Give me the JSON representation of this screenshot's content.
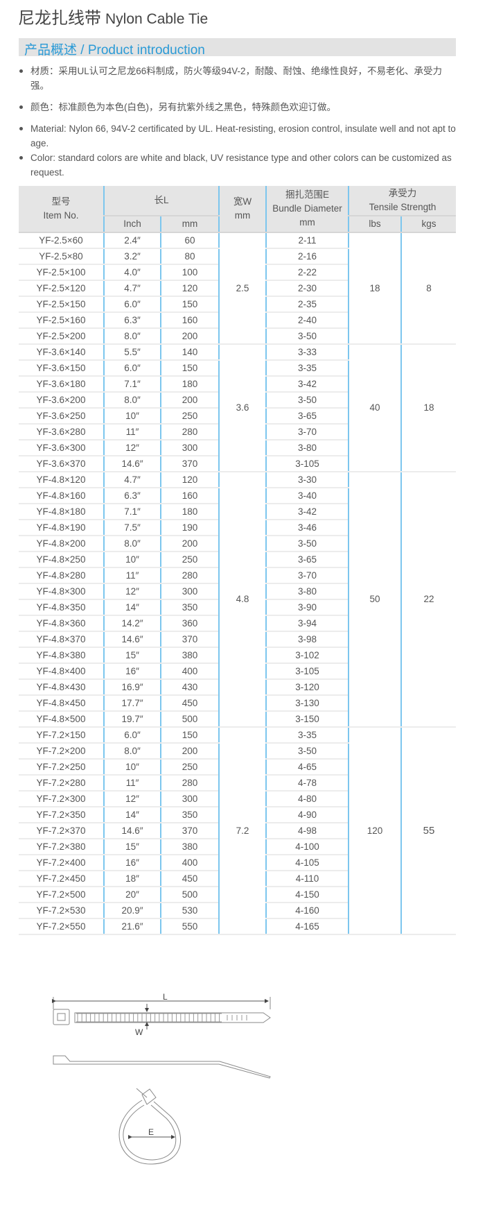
{
  "title": {
    "cn": "尼龙扎线带",
    "en": "Nylon Cable Tie"
  },
  "intro_header": "产品概述  / Product introduction",
  "bullets": [
    "材质：采用UL认可之尼龙66料制成，防火等级94V-2，耐酸、耐蚀、绝缘性良好，不易老化、承受力强。",
    "颜色：标准颜色为本色(白色)，另有抗紫外线之黑色，特殊颜色欢迎订做。",
    "Material: Nylon 66, 94V-2 certificated by UL. Heat-resisting, erosion control, insulate well and not apt to age.",
    "Color: standard colors are white and black, UV resistance type and other colors can be customized as request."
  ],
  "table": {
    "headers": {
      "item_cn": "型号",
      "item_en": "Item  No.",
      "length": "长L",
      "inch": "Inch",
      "mm": "mm",
      "width_cn": "宽W",
      "width_unit": "mm",
      "bundle_cn": "捆扎范围E",
      "bundle_en": "Bundle Diameter",
      "bundle_unit": "mm",
      "tensile_cn": "承受力",
      "tensile_en": "Tensile  Strength",
      "lbs": "lbs",
      "kgs": "kgs"
    },
    "groups": [
      {
        "width": "2.5",
        "lbs": "18",
        "kgs": "8",
        "rows": [
          [
            "YF-2.5×60",
            "2.4″",
            "60",
            "2-11"
          ],
          [
            "YF-2.5×80",
            "3.2″",
            "80",
            "2-16"
          ],
          [
            "YF-2.5×100",
            "4.0″",
            "100",
            "2-22"
          ],
          [
            "YF-2.5×120",
            "4.7″",
            "120",
            "2-30"
          ],
          [
            "YF-2.5×150",
            "6.0″",
            "150",
            "2-35"
          ],
          [
            "YF-2.5×160",
            "6.3″",
            "160",
            "2-40"
          ],
          [
            "YF-2.5×200",
            "8.0″",
            "200",
            "3-50"
          ]
        ]
      },
      {
        "width": "3.6",
        "lbs": "40",
        "kgs": "18",
        "rows": [
          [
            "YF-3.6×140",
            "5.5″",
            "140",
            "3-33"
          ],
          [
            "YF-3.6×150",
            "6.0″",
            "150",
            "3-35"
          ],
          [
            "YF-3.6×180",
            "7.1″",
            "180",
            "3-42"
          ],
          [
            "YF-3.6×200",
            "8.0″",
            "200",
            "3-50"
          ],
          [
            "YF-3.6×250",
            "10″",
            "250",
            "3-65"
          ],
          [
            "YF-3.6×280",
            "11″",
            "280",
            "3-70"
          ],
          [
            "YF-3.6×300",
            "12″",
            "300",
            "3-80"
          ],
          [
            "YF-3.6×370",
            "14.6″",
            "370",
            "3-105"
          ]
        ]
      },
      {
        "width": "4.8",
        "lbs": "50",
        "kgs": "22",
        "rows": [
          [
            "YF-4.8×120",
            "4.7″",
            "120",
            "3-30"
          ],
          [
            "YF-4.8×160",
            "6.3″",
            "160",
            "3-40"
          ],
          [
            "YF-4.8×180",
            "7.1″",
            "180",
            "3-42"
          ],
          [
            "YF-4.8×190",
            "7.5″",
            "190",
            "3-46"
          ],
          [
            "YF-4.8×200",
            "8.0″",
            "200",
            "3-50"
          ],
          [
            "YF-4.8×250",
            "10″",
            "250",
            "3-65"
          ],
          [
            "YF-4.8×280",
            "11″",
            "280",
            "3-70"
          ],
          [
            "YF-4.8×300",
            "12″",
            "300",
            "3-80"
          ],
          [
            "YF-4.8×350",
            "14″",
            "350",
            "3-90"
          ],
          [
            "YF-4.8×360",
            "14.2″",
            "360",
            "3-94"
          ],
          [
            "YF-4.8×370",
            "14.6″",
            "370",
            "3-98"
          ],
          [
            "YF-4.8×380",
            "15″",
            "380",
            "3-102"
          ],
          [
            "YF-4.8×400",
            "16″",
            "400",
            "3-105"
          ],
          [
            "YF-4.8×430",
            "16.9″",
            "430",
            "3-120"
          ],
          [
            "YF-4.8×450",
            "17.7″",
            "450",
            "3-130"
          ],
          [
            "YF-4.8×500",
            "19.7″",
            "500",
            "3-150"
          ]
        ]
      },
      {
        "width": "7.2",
        "lbs": "120",
        "kgs": "55",
        "rows": [
          [
            "YF-7.2×150",
            "6.0″",
            "150",
            "3-35"
          ],
          [
            "YF-7.2×200",
            "8.0″",
            "200",
            "3-50"
          ],
          [
            "YF-7.2×250",
            "10″",
            "250",
            "4-65"
          ],
          [
            "YF-7.2×280",
            "11″",
            "280",
            "4-78"
          ],
          [
            "YF-7.2×300",
            "12″",
            "300",
            "4-80"
          ],
          [
            "YF-7.2×350",
            "14″",
            "350",
            "4-90"
          ],
          [
            "YF-7.2×370",
            "14.6″",
            "370",
            "4-98"
          ],
          [
            "YF-7.2×380",
            "15″",
            "380",
            "4-100"
          ],
          [
            "YF-7.2×400",
            "16″",
            "400",
            "4-105"
          ],
          [
            "YF-7.2×450",
            "18″",
            "450",
            "4-110"
          ],
          [
            "YF-7.2×500",
            "20″",
            "500",
            "4-150"
          ],
          [
            "YF-7.2×530",
            "20.9″",
            "530",
            "4-160"
          ],
          [
            "YF-7.2×550",
            "21.6″",
            "550",
            "4-165"
          ]
        ]
      }
    ]
  },
  "diagram_labels": {
    "length": "L",
    "width": "W",
    "diameter": "E"
  },
  "colors": {
    "accent": "#2a9ad6",
    "divider": "#7cc6ee",
    "header_bg": "#e5e5e5"
  }
}
